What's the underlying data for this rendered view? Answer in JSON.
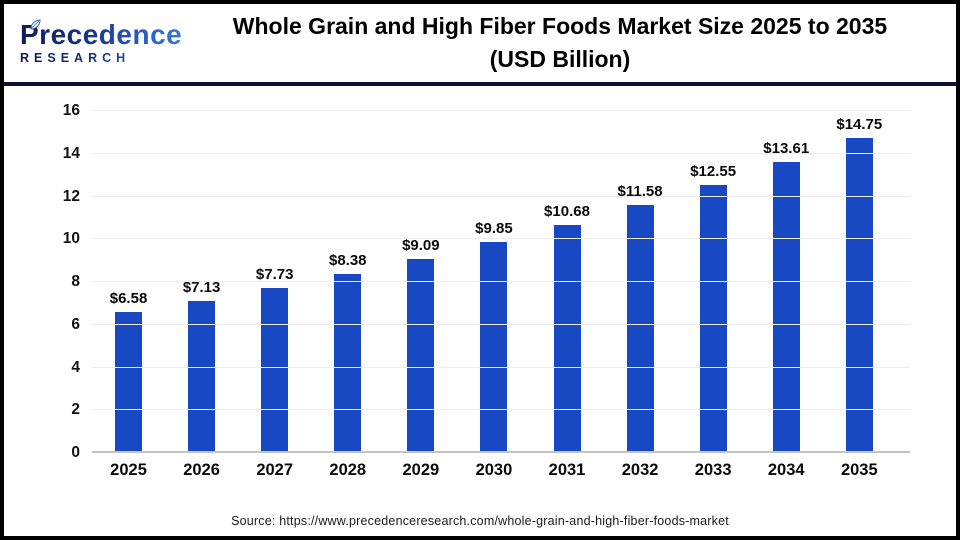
{
  "header": {
    "logo": {
      "name": "Precedence",
      "subname": "RESEARCH"
    },
    "title_line1": "Whole Grain and High Fiber Foods Market Size 2025 to 2035",
    "title_line2": "(USD Billion)"
  },
  "chart_data": {
    "type": "bar",
    "title": "Whole Grain and High Fiber Foods Market Size 2025 to 2035 (USD Billion)",
    "categories": [
      "2025",
      "2026",
      "2027",
      "2028",
      "2029",
      "2030",
      "2031",
      "2032",
      "2033",
      "2034",
      "2035"
    ],
    "values": [
      6.58,
      7.13,
      7.73,
      8.38,
      9.09,
      9.85,
      10.68,
      11.58,
      12.55,
      13.61,
      14.75
    ],
    "value_labels": [
      "$6.58",
      "$7.13",
      "$7.73",
      "$8.38",
      "$9.09",
      "$9.85",
      "$10.68",
      "$11.58",
      "$12.55",
      "$13.61",
      "$14.75"
    ],
    "xlabel": "",
    "ylabel": "",
    "ylim": [
      0,
      16
    ],
    "yticks": [
      0,
      2,
      4,
      6,
      8,
      10,
      12,
      14,
      16
    ],
    "grid": true,
    "legend": "none",
    "bar_color": "#1848c2"
  },
  "footer": {
    "source": "Source: https://www.precedenceresearch.com/whole-grain-and-high-fiber-foods-market"
  }
}
